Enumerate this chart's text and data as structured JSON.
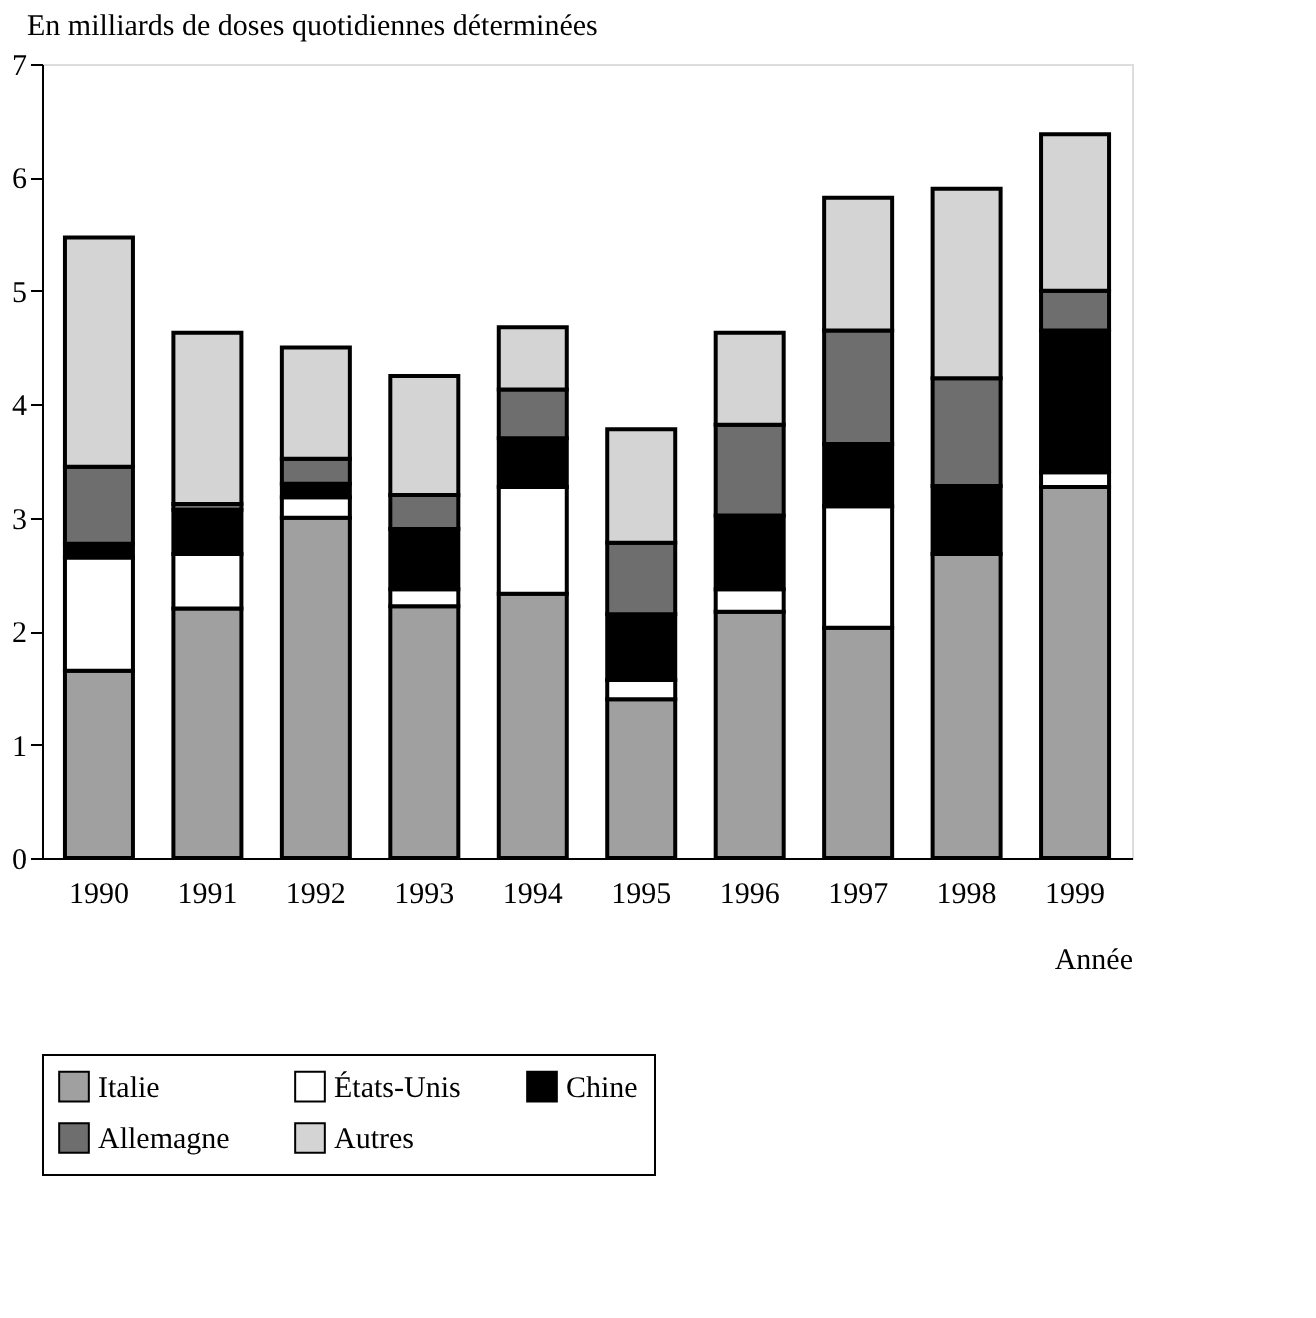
{
  "chart_data": {
    "type": "bar",
    "stacked": true,
    "ylabel": "En milliards de doses quotidiennes déterminées",
    "xlabel": "Année",
    "categories": [
      "1990",
      "1991",
      "1992",
      "1993",
      "1994",
      "1995",
      "1996",
      "1997",
      "1998",
      "1999"
    ],
    "series": [
      {
        "name": "Italie",
        "color": "#a0a0a0",
        "values": [
          1.65,
          2.2,
          3.0,
          2.22,
          2.33,
          1.4,
          2.17,
          2.03,
          2.68,
          3.27
        ]
      },
      {
        "name": "États-Unis",
        "color": "#ffffff",
        "values": [
          1.0,
          0.48,
          0.18,
          0.15,
          0.94,
          0.17,
          0.2,
          1.07,
          0,
          0.13
        ]
      },
      {
        "name": "Chine",
        "color": "#000000",
        "values": [
          0.12,
          0.39,
          0.12,
          0.53,
          0.43,
          0.58,
          0.65,
          0.55,
          0.6,
          1.25
        ]
      },
      {
        "name": "Allemagne",
        "color": "#6e6e6e",
        "values": [
          0.68,
          0.05,
          0.22,
          0.3,
          0.43,
          0.63,
          0.8,
          1.0,
          0.95,
          0.35
        ]
      },
      {
        "name": "Autres",
        "color": "#d4d4d4",
        "values": [
          2.02,
          1.51,
          0.98,
          1.05,
          0.55,
          1.0,
          0.81,
          1.17,
          1.67,
          1.38
        ]
      }
    ],
    "ylim": [
      0,
      7
    ],
    "yticks": [
      0,
      1,
      2,
      3,
      4,
      5,
      6,
      7
    ],
    "grid": false,
    "legend": "bottom"
  }
}
